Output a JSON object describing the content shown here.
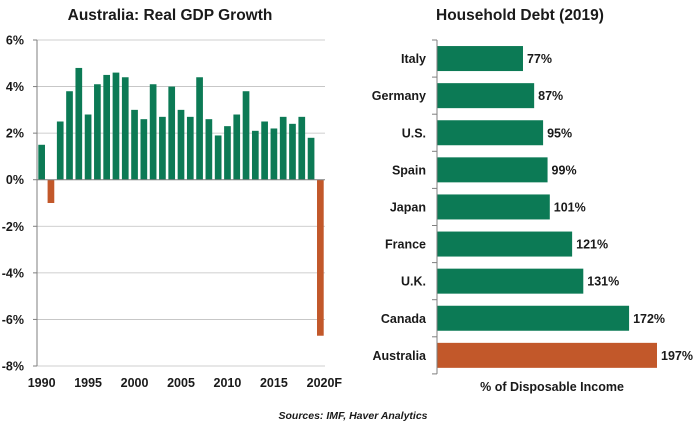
{
  "colors": {
    "positive": "#0c7a55",
    "highlight": "#c2582a",
    "axis": "#7f7f7f",
    "grid": "#bfbfbf"
  },
  "source_note": "Sources: IMF, Haver Analytics",
  "chart_data": [
    {
      "type": "bar",
      "title": "Australia: Real GDP Growth",
      "orientation": "vertical",
      "ylim": [
        -8,
        6
      ],
      "y_ticks": [
        6,
        4,
        2,
        0,
        -2,
        -4,
        -6,
        -8
      ],
      "y_tick_labels": [
        "6%",
        "4%",
        "2%",
        "0%",
        "-2%",
        "-4%",
        "-6%",
        "-8%"
      ],
      "x_tick_labels": [
        "1990",
        "1995",
        "2000",
        "2005",
        "2010",
        "2015",
        "2020F"
      ],
      "x_tick_years": [
        1990,
        1995,
        2000,
        2005,
        2010,
        2015,
        2020
      ],
      "grid": true,
      "categories": [
        1990,
        1991,
        1992,
        1993,
        1994,
        1995,
        1996,
        1997,
        1998,
        1999,
        2000,
        2001,
        2002,
        2003,
        2004,
        2005,
        2006,
        2007,
        2008,
        2009,
        2010,
        2011,
        2012,
        2013,
        2014,
        2015,
        2016,
        2017,
        2018,
        2019,
        2020
      ],
      "values": [
        1.5,
        -1.0,
        2.5,
        3.8,
        4.8,
        2.8,
        4.1,
        4.5,
        4.6,
        4.4,
        3.0,
        2.6,
        4.1,
        2.7,
        4.0,
        3.0,
        2.7,
        4.4,
        2.6,
        1.9,
        2.3,
        2.8,
        3.8,
        2.1,
        2.5,
        2.2,
        2.7,
        2.4,
        2.7,
        1.8,
        -6.7
      ],
      "highlight_rule": "negative values shown in orange"
    },
    {
      "type": "bar",
      "title": "Household Debt (2019)",
      "orientation": "horizontal",
      "xlabel": "% of Disposable Income",
      "categories": [
        "Italy",
        "Germany",
        "U.S.",
        "Spain",
        "Japan",
        "France",
        "U.K.",
        "Canada",
        "Australia"
      ],
      "values": [
        77,
        87,
        95,
        99,
        101,
        121,
        131,
        172,
        197
      ],
      "value_labels": [
        "77%",
        "87%",
        "95%",
        "99%",
        "101%",
        "121%",
        "131%",
        "172%",
        "197%"
      ],
      "highlight_category": "Australia",
      "xlim": [
        0,
        200
      ]
    }
  ]
}
